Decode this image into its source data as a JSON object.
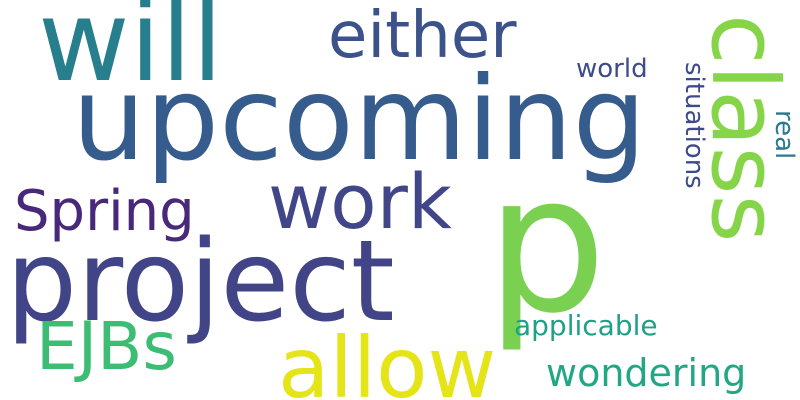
{
  "background": "#ffffff",
  "words": [
    {
      "key": "will",
      "text": "will",
      "color": "#277f8e"
    },
    {
      "key": "upcoming",
      "text": "upcoming",
      "color": "#365c8d"
    },
    {
      "key": "either",
      "text": "either",
      "color": "#3b528b"
    },
    {
      "key": "world",
      "text": "world",
      "color": "#3e4c8a"
    },
    {
      "key": "work",
      "text": "work",
      "color": "#404688"
    },
    {
      "key": "spring",
      "text": "Spring",
      "color": "#482878"
    },
    {
      "key": "project",
      "text": "project",
      "color": "#414487"
    },
    {
      "key": "p",
      "text": "p",
      "color": "#7ad151"
    },
    {
      "key": "class",
      "text": "class",
      "color": "#86d549"
    },
    {
      "key": "ejbs",
      "text": "EJBs",
      "color": "#3dbc74"
    },
    {
      "key": "allow",
      "text": "allow",
      "color": "#e5e419"
    },
    {
      "key": "applicable",
      "text": "applicable",
      "color": "#1fa187"
    },
    {
      "key": "wondering",
      "text": "wondering",
      "color": "#22a785"
    },
    {
      "key": "situations",
      "text": "situations",
      "color": "#3e4a89"
    },
    {
      "key": "real",
      "text": "real",
      "color": "#2a788e"
    }
  ]
}
